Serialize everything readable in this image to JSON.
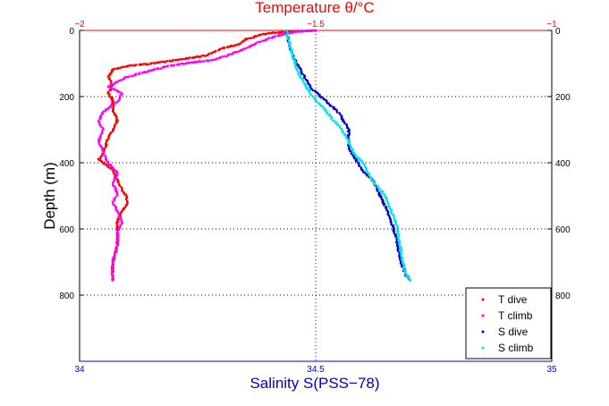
{
  "chart_data": {
    "type": "scatter",
    "title": "Temperature θ/°C",
    "ylabel": "Depth (m)",
    "xlabel_bottom": "Salinity S(PSS−78)",
    "top_axis": {
      "label": "Temperature θ/°C",
      "range": [
        -2,
        -1
      ],
      "ticks": [
        -2,
        -1.5,
        -1
      ],
      "tick_labels": [
        "−2",
        "−1.5",
        "−1"
      ],
      "color": "#ff0000"
    },
    "bottom_axis": {
      "label": "Salinity S(PSS−78)",
      "range": [
        34,
        35
      ],
      "ticks": [
        34,
        34.5,
        35
      ],
      "tick_labels": [
        "34",
        "34.5",
        "35"
      ],
      "color": "#0000cc"
    },
    "y_axis": {
      "label": "Depth (m)",
      "range": [
        0,
        1000
      ],
      "reversed": true,
      "ticks": [
        0,
        200,
        400,
        600,
        800
      ],
      "tick_labels": [
        "0",
        "200",
        "400",
        "600",
        "800"
      ]
    },
    "grid": "dotted",
    "legend": {
      "placement": "bottom-right",
      "entries": [
        "T dive",
        "T climb",
        "S dive",
        "S climb"
      ]
    },
    "series": [
      {
        "name": "T dive",
        "axis": "top",
        "color": "#ff0000",
        "points": [
          [
            -1.5,
            0
          ],
          [
            -1.55,
            3
          ],
          [
            -1.6,
            8
          ],
          [
            -1.62,
            15
          ],
          [
            -1.65,
            28
          ],
          [
            -1.66,
            40
          ],
          [
            -1.7,
            55
          ],
          [
            -1.73,
            75
          ],
          [
            -1.82,
            95
          ],
          [
            -1.9,
            108
          ],
          [
            -1.93,
            118
          ],
          [
            -1.94,
            140
          ],
          [
            -1.93,
            165
          ],
          [
            -1.94,
            190
          ],
          [
            -1.93,
            210
          ],
          [
            -1.93,
            240
          ],
          [
            -1.92,
            270
          ],
          [
            -1.93,
            300
          ],
          [
            -1.94,
            330
          ],
          [
            -1.95,
            370
          ],
          [
            -1.96,
            390
          ],
          [
            -1.93,
            420
          ],
          [
            -1.92,
            455
          ],
          [
            -1.91,
            480
          ],
          [
            -1.9,
            505
          ],
          [
            -1.9,
            525
          ],
          [
            -1.91,
            545
          ],
          [
            -1.92,
            575
          ],
          [
            -1.92,
            610
          ],
          [
            -1.92,
            650
          ],
          [
            -1.93,
            700
          ],
          [
            -1.93,
            755
          ]
        ]
      },
      {
        "name": "T climb",
        "axis": "top",
        "color": "#ff00ff",
        "points": [
          [
            -1.93,
            755
          ],
          [
            -1.93,
            700
          ],
          [
            -1.92,
            650
          ],
          [
            -1.92,
            610
          ],
          [
            -1.91,
            580
          ],
          [
            -1.92,
            545
          ],
          [
            -1.93,
            520
          ],
          [
            -1.92,
            495
          ],
          [
            -1.93,
            460
          ],
          [
            -1.92,
            430
          ],
          [
            -1.94,
            400
          ],
          [
            -1.95,
            370
          ],
          [
            -1.96,
            335
          ],
          [
            -1.95,
            300
          ],
          [
            -1.96,
            275
          ],
          [
            -1.95,
            245
          ],
          [
            -1.92,
            215
          ],
          [
            -1.91,
            190
          ],
          [
            -1.94,
            170
          ],
          [
            -1.9,
            140
          ],
          [
            -1.82,
            110
          ],
          [
            -1.78,
            100
          ],
          [
            -1.72,
            90
          ],
          [
            -1.68,
            72
          ],
          [
            -1.65,
            55
          ],
          [
            -1.62,
            35
          ],
          [
            -1.58,
            15
          ],
          [
            -1.54,
            3
          ],
          [
            -1.5,
            0
          ]
        ]
      },
      {
        "name": "S dive",
        "axis": "bottom",
        "color": "#0000cc",
        "points": [
          [
            34.44,
            0
          ],
          [
            34.44,
            20
          ],
          [
            34.445,
            45
          ],
          [
            34.45,
            70
          ],
          [
            34.46,
            100
          ],
          [
            34.47,
            125
          ],
          [
            34.48,
            150
          ],
          [
            34.49,
            175
          ],
          [
            34.51,
            200
          ],
          [
            34.53,
            225
          ],
          [
            34.55,
            250
          ],
          [
            34.56,
            275
          ],
          [
            34.57,
            300
          ],
          [
            34.57,
            330
          ],
          [
            34.57,
            355
          ],
          [
            34.58,
            380
          ],
          [
            34.59,
            400
          ],
          [
            34.6,
            425
          ],
          [
            34.62,
            450
          ],
          [
            34.63,
            480
          ],
          [
            34.64,
            510
          ],
          [
            34.65,
            540
          ],
          [
            34.66,
            580
          ],
          [
            34.67,
            620
          ],
          [
            34.675,
            660
          ],
          [
            34.68,
            700
          ],
          [
            34.69,
            735
          ],
          [
            34.7,
            755
          ]
        ]
      },
      {
        "name": "S climb",
        "axis": "bottom",
        "color": "#00e5ee",
        "points": [
          [
            34.7,
            755
          ],
          [
            34.69,
            735
          ],
          [
            34.685,
            700
          ],
          [
            34.68,
            660
          ],
          [
            34.675,
            620
          ],
          [
            34.67,
            580
          ],
          [
            34.66,
            545
          ],
          [
            34.65,
            510
          ],
          [
            34.64,
            485
          ],
          [
            34.62,
            455
          ],
          [
            34.61,
            430
          ],
          [
            34.6,
            400
          ],
          [
            34.585,
            380
          ],
          [
            34.575,
            355
          ],
          [
            34.565,
            325
          ],
          [
            34.555,
            300
          ],
          [
            34.54,
            275
          ],
          [
            34.525,
            250
          ],
          [
            34.51,
            225
          ],
          [
            34.49,
            195
          ],
          [
            34.48,
            170
          ],
          [
            34.47,
            145
          ],
          [
            34.46,
            120
          ],
          [
            34.455,
            95
          ],
          [
            34.45,
            70
          ],
          [
            34.445,
            45
          ],
          [
            34.44,
            20
          ],
          [
            34.44,
            0
          ]
        ]
      }
    ]
  }
}
